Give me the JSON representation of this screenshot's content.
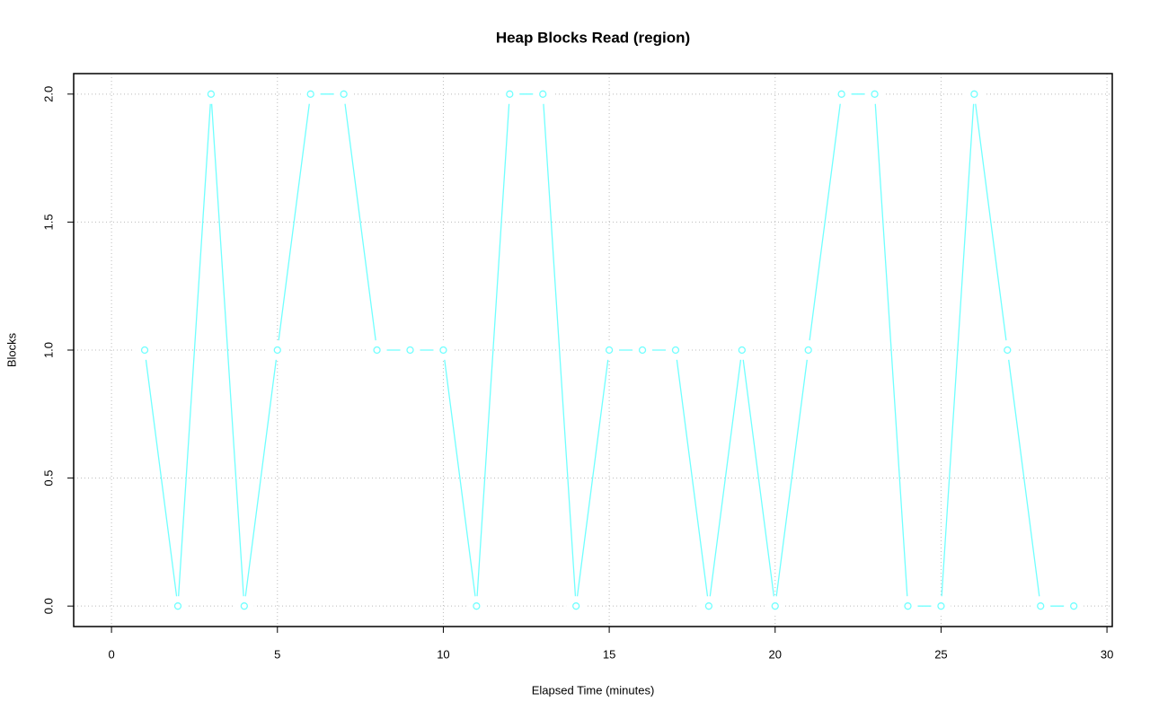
{
  "chart_data": {
    "type": "line",
    "title": "Heap Blocks Read (region)",
    "x_label": "Elapsed Time (minutes)",
    "y_label": "Blocks",
    "x": [
      1,
      2,
      3,
      4,
      5,
      6,
      7,
      8,
      9,
      10,
      11,
      12,
      13,
      14,
      15,
      16,
      17,
      18,
      19,
      20,
      21,
      22,
      23,
      24,
      25,
      26,
      27,
      28,
      29
    ],
    "series": [
      {
        "name": "Blocks",
        "color": "#70ffff",
        "values": [
          1,
          0,
          2,
          0,
          1,
          2,
          2,
          1,
          1,
          1,
          0,
          2,
          2,
          0,
          1,
          1,
          1,
          0,
          1,
          0,
          1,
          2,
          2,
          0,
          0,
          2,
          1,
          0,
          0
        ]
      }
    ],
    "xlim": [
      -1.14,
      30.16
    ],
    "ylim": [
      -0.08,
      2.08
    ],
    "xticks": [
      0,
      5,
      10,
      15,
      20,
      25,
      30
    ],
    "yticks": [
      {
        "value": 0,
        "label": "0.0"
      },
      {
        "value": 0.5,
        "label": "0.5"
      },
      {
        "value": 1,
        "label": "1.0"
      },
      {
        "value": 1.5,
        "label": "1.5"
      },
      {
        "value": 2,
        "label": "2.0"
      }
    ],
    "grid": true,
    "markers": true
  }
}
